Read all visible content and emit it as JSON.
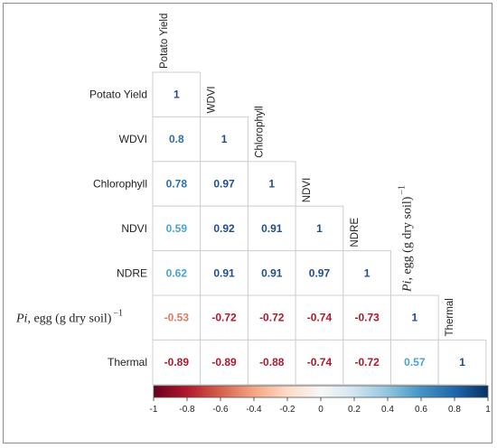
{
  "chart_data": {
    "type": "heatmap",
    "variables": [
      "Potato Yield",
      "WDVI",
      "Chlorophyll",
      "NDVI",
      "NDRE",
      "Pi, egg (g dry soil)",
      "Thermal"
    ],
    "pi_label": {
      "italic": "Pi",
      "text": ", egg (g dry soil)",
      "superscript": "−1"
    },
    "matrix": [
      [
        1
      ],
      [
        0.8,
        1
      ],
      [
        0.78,
        0.97,
        1
      ],
      [
        0.59,
        0.92,
        0.91,
        1
      ],
      [
        0.62,
        0.91,
        0.91,
        0.97,
        1
      ],
      [
        -0.53,
        -0.72,
        -0.72,
        -0.74,
        -0.73,
        1
      ],
      [
        -0.89,
        -0.89,
        -0.88,
        -0.74,
        -0.72,
        0.57,
        1
      ]
    ],
    "colorbar": {
      "range": [
        -1,
        1
      ],
      "ticks": [
        "-1",
        "-0.8",
        "-0.6",
        "-0.4",
        "-0.2",
        "0",
        "0.2",
        "0.4",
        "0.6",
        "0.8",
        "1"
      ]
    },
    "colors": {
      "negative": "#b2182b",
      "mid": "#f7f7f7",
      "positive": "#2166ac",
      "grid": "#cfcfcf"
    }
  }
}
